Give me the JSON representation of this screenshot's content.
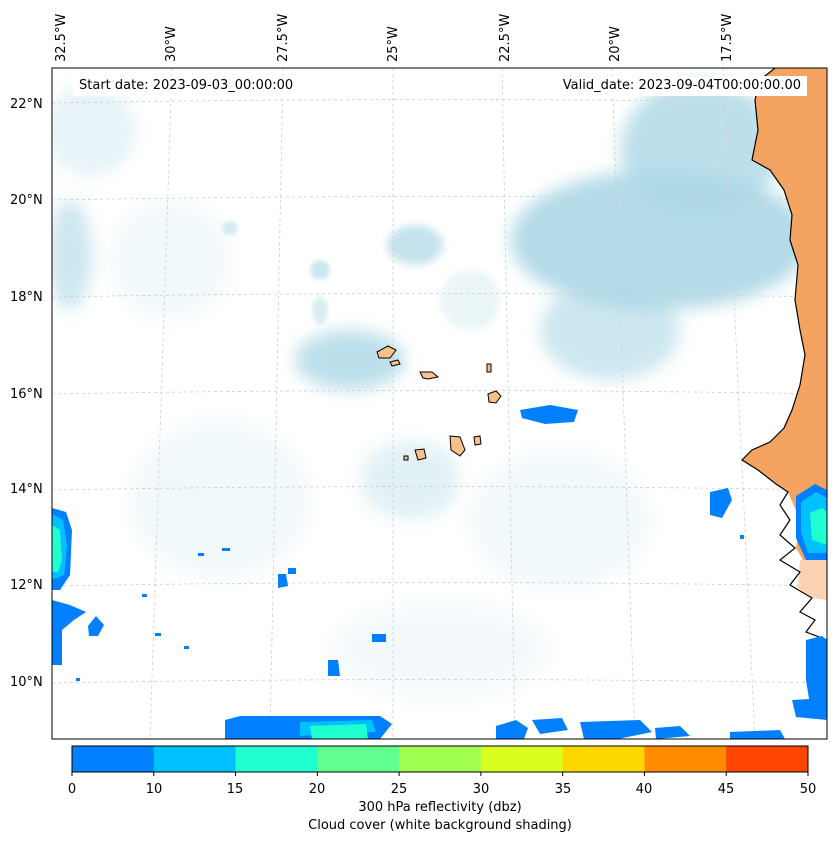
{
  "map": {
    "start_date": "Start date: 2023-09-03_00:00:00",
    "valid_date": "Valid_date: 2023-09-04T00:00:00.00",
    "lon_labels": [
      "32.5°W",
      "30°W",
      "27.5°W",
      "25°W",
      "22.5°W",
      "20°W",
      "17.5°W"
    ],
    "lat_labels": [
      "22°N",
      "20°N",
      "18°N",
      "16°N",
      "14°N",
      "12°N",
      "10°N"
    ],
    "colors": {
      "cloud": "#add8e6",
      "land": "#f4a460",
      "coast": "#000000",
      "grid": "#cccccc"
    }
  },
  "colorbar": {
    "ticks": [
      "0",
      "10",
      "15",
      "20",
      "25",
      "30",
      "35",
      "40",
      "45",
      "50"
    ],
    "colors": [
      "#0080ff",
      "#00c0ff",
      "#20ffd0",
      "#60ff90",
      "#a0ff50",
      "#d8ff20",
      "#ffd700",
      "#ff8c00",
      "#ff4500"
    ],
    "label_line1": "300 hPa reflectivity (dbz)",
    "label_line2": "Cloud cover (white background shading)"
  }
}
